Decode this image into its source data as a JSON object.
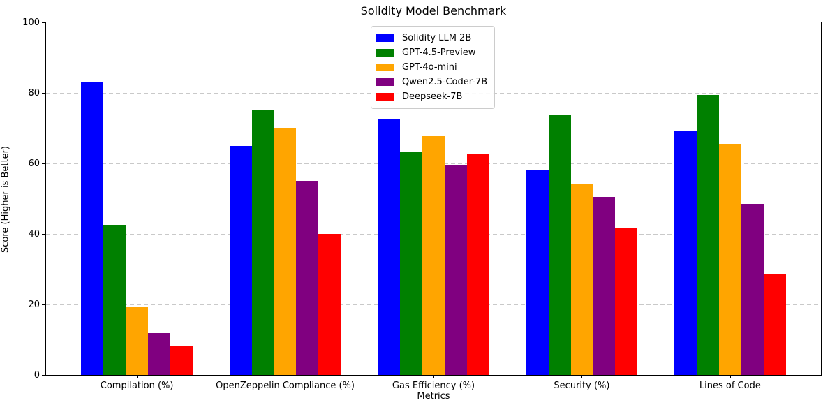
{
  "chart_data": {
    "type": "bar",
    "title": "Solidity Model Benchmark",
    "xlabel": "Metrics",
    "ylabel": "Score (Higher is Better)",
    "ylim": [
      0,
      100
    ],
    "yticks": [
      0,
      20,
      40,
      60,
      80,
      100
    ],
    "grid": "horizontal-dashed",
    "grid_color": "#c9c9c9",
    "legend_position": "upper-center-inside",
    "categories": [
      "Compilation (%)",
      "OpenZeppelin Compliance (%)",
      "Gas Efficiency (%)",
      "Security (%)",
      "Lines of Code"
    ],
    "series": [
      {
        "name": "Solidity LLM 2B",
        "color": "#0000FF",
        "values": [
          82.9,
          65.0,
          72.5,
          58.2,
          69.2
        ]
      },
      {
        "name": "GPT-4.5-Preview",
        "color": "#008000",
        "values": [
          42.6,
          75.0,
          63.4,
          73.7,
          79.5
        ]
      },
      {
        "name": "GPT-4o-mini",
        "color": "#FFA500",
        "values": [
          19.5,
          70.0,
          67.8,
          54.0,
          65.5
        ]
      },
      {
        "name": "Qwen2.5-Coder-7B",
        "color": "#800080",
        "values": [
          11.8,
          55.0,
          59.7,
          50.5,
          48.5
        ]
      },
      {
        "name": "Deepseek-7B",
        "color": "#FF0000",
        "values": [
          8.1,
          40.0,
          62.7,
          41.6,
          28.7
        ]
      }
    ]
  }
}
